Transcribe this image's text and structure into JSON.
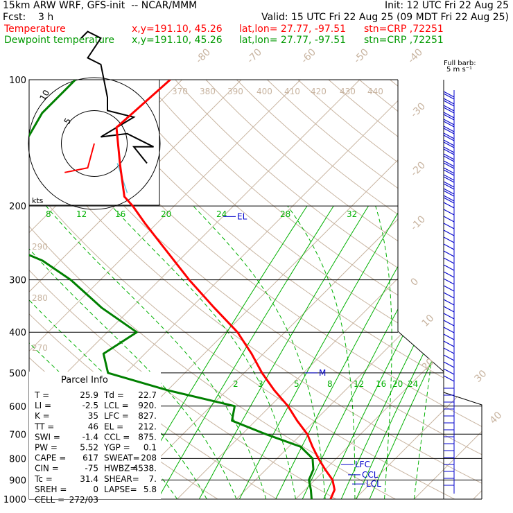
{
  "header": {
    "model": "15km ARW WRF, GFS-init  -- NCAR/MMM",
    "init": "Init: 12 UTC Fri 22 Aug 25",
    "fcst": "Fcst:    3 h",
    "valid": "Valid: 15 UTC Fri 22 Aug 25 (09 MDT Fri 22 Aug 25)",
    "temp_label": "Temperature",
    "dew_label": "Dewpoint temperature",
    "xy": "x,y=191.10, 45.26",
    "latlon": "lat,lon= 27.77, -97.51",
    "stn": "stn=CRP ,72251"
  },
  "barb_legend": {
    "line1": "Full barb:",
    "line2": "5 m s⁻¹"
  },
  "hodograph": {
    "ring_labels": [
      "10",
      "5"
    ],
    "unit": "kts"
  },
  "parcel_info": {
    "title": "Parcel Info",
    "rows": [
      [
        "T  =",
        "25.9",
        "Td =",
        "22.7"
      ],
      [
        "LI =",
        "-2.5",
        "LCL =",
        "920."
      ],
      [
        "K  =",
        "35",
        "LFC =",
        "827."
      ],
      [
        "TT =",
        "46",
        "EL  =",
        "212."
      ],
      [
        "SWI =",
        "-1.4",
        "CCL =",
        "875."
      ],
      [
        "PW =",
        "5.52",
        "YGP =",
        "0.1"
      ],
      [
        "CAPE =",
        "617",
        "SWEAT=",
        "208"
      ],
      [
        "CIN =",
        "-75",
        "HWBZ=",
        "4538."
      ],
      [
        "Tc =",
        "31.4",
        "SHEAR=",
        "7."
      ],
      [
        "SREH =",
        "0",
        "LAPSE=",
        "5.8"
      ],
      [
        "CELL =",
        "272/03",
        "",
        ""
      ]
    ]
  },
  "colors": {
    "temperature": "#ff0000",
    "dewpoint": "#008000",
    "isotherm": "#c8b4a0",
    "mixing_ratio": "#00b000",
    "levels": "#0000cc",
    "wind": "#0000cc"
  },
  "chart_data": {
    "type": "line",
    "diagram": "Skew-T log-P",
    "pressure_levels": [
      100,
      200,
      300,
      400,
      500,
      600,
      700,
      800,
      900,
      1000
    ],
    "isotherm_labels": [
      "-80",
      "-70",
      "-60",
      "-50",
      "-40",
      "-30",
      "-20",
      "-10",
      "0",
      "10",
      "20",
      "30",
      "40"
    ],
    "theta_labels_top": [
      "370",
      "380",
      "390",
      "400",
      "410",
      "420",
      "430",
      "440"
    ],
    "theta_labels_left": [
      "290",
      "280",
      "270"
    ],
    "mixing_ratio_labels_upper": [
      "8",
      "12",
      "16",
      "20",
      "24",
      "28",
      "32"
    ],
    "mixing_ratio_labels_lower": [
      "2",
      "3",
      "5",
      "8",
      "12",
      "16",
      "20",
      "24"
    ],
    "level_markers": [
      {
        "name": "EL",
        "pressure": 212
      },
      {
        "name": "M",
        "pressure": 500
      },
      {
        "name": "LFC",
        "pressure": 827
      },
      {
        "name": "CCL",
        "pressure": 875
      },
      {
        "name": "LCL",
        "pressure": 920
      }
    ],
    "series": [
      {
        "name": "Temperature",
        "points": [
          [
            100,
            -72
          ],
          [
            130,
            -73
          ],
          [
            160,
            -66
          ],
          [
            190,
            -60
          ],
          [
            200,
            -57
          ],
          [
            220,
            -52
          ],
          [
            250,
            -45
          ],
          [
            300,
            -35
          ],
          [
            350,
            -26
          ],
          [
            400,
            -18
          ],
          [
            450,
            -12
          ],
          [
            500,
            -7
          ],
          [
            550,
            -2
          ],
          [
            600,
            3
          ],
          [
            650,
            7
          ],
          [
            700,
            11
          ],
          [
            750,
            14
          ],
          [
            800,
            17
          ],
          [
            850,
            20
          ],
          [
            900,
            23
          ],
          [
            950,
            25
          ],
          [
            1000,
            25.9
          ]
        ]
      },
      {
        "name": "Dewpoint temperature",
        "points": [
          [
            100,
            -88
          ],
          [
            120,
            -88
          ],
          [
            140,
            -86
          ],
          [
            160,
            -85
          ],
          [
            170,
            -84
          ],
          [
            180,
            -82
          ],
          [
            200,
            -76
          ],
          [
            250,
            -71
          ],
          [
            270,
            -63
          ],
          [
            300,
            -55
          ],
          [
            350,
            -45
          ],
          [
            400,
            -35
          ],
          [
            450,
            -37
          ],
          [
            500,
            -33
          ],
          [
            550,
            -20
          ],
          [
            600,
            -6
          ],
          [
            650,
            -4
          ],
          [
            700,
            4
          ],
          [
            750,
            12
          ],
          [
            800,
            16
          ],
          [
            850,
            18
          ],
          [
            900,
            19
          ],
          [
            950,
            21
          ],
          [
            1000,
            22.7
          ]
        ]
      }
    ],
    "hodograph_points": [
      [
        0,
        0
      ],
      [
        -5,
        -1
      ],
      [
        -9,
        0
      ],
      [
        -5,
        0
      ],
      [
        -2,
        -2
      ],
      [
        0,
        -7
      ],
      [
        -3,
        -12
      ],
      [
        1,
        -14
      ],
      [
        -4,
        -22
      ],
      [
        -7,
        -26
      ],
      [
        -6,
        -27
      ]
    ],
    "ylim": [
      100,
      1000
    ],
    "xlim_at_1000hPa": [
      -25,
      45
    ]
  }
}
